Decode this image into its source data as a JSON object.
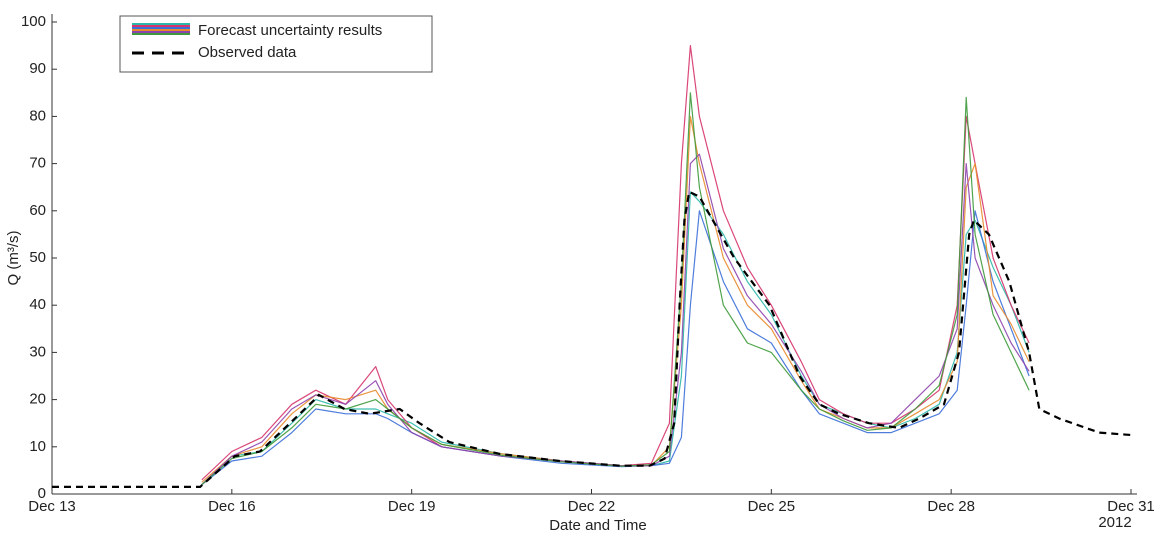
{
  "chart_data": {
    "type": "line",
    "xlabel": "Date and Time",
    "ylabel": "Q (m³/s)",
    "x_year_label": "2012",
    "xlim": [
      13,
      31
    ],
    "ylim": [
      0,
      100
    ],
    "xticks": [
      {
        "value": 13,
        "label": "Dec 13"
      },
      {
        "value": 16,
        "label": "Dec 16"
      },
      {
        "value": 19,
        "label": "Dec 19"
      },
      {
        "value": 22,
        "label": "Dec 22"
      },
      {
        "value": 25,
        "label": "Dec 25"
      },
      {
        "value": 28,
        "label": "Dec 28"
      },
      {
        "value": 31,
        "label": "Dec 31"
      }
    ],
    "yticks": [
      0,
      10,
      20,
      30,
      40,
      50,
      60,
      70,
      80,
      90,
      100
    ],
    "legend": "upper left",
    "ensemble": {
      "name": "Forecast uncertainty results",
      "colors": [
        "#2ab7a9",
        "#d6336c",
        "#3b6fd8",
        "#e8892b",
        "#8e44ad",
        "#3d9a3a"
      ],
      "x": [
        15.5,
        16,
        16.5,
        17,
        17.4,
        17.9,
        18.4,
        18.6,
        19,
        19.5,
        20.5,
        21.5,
        22.5,
        23,
        23.3,
        23.5,
        23.65,
        23.8,
        24.2,
        24.6,
        25,
        25.5,
        25.8,
        26.2,
        26.6,
        27,
        27.4,
        27.8,
        28.1,
        28.25,
        28.4,
        28.7,
        29,
        29.3
      ],
      "members": [
        [
          2,
          8,
          9,
          15,
          20,
          18,
          18,
          17,
          15,
          11,
          8.5,
          7,
          6,
          6,
          7,
          25,
          64,
          62,
          55,
          45,
          38,
          25,
          19,
          17,
          15,
          14,
          16,
          19,
          30,
          55,
          58,
          48,
          40,
          30
        ],
        [
          3,
          9,
          12,
          19,
          22,
          19,
          27,
          20,
          14,
          10,
          8,
          7,
          6,
          6.5,
          15,
          70,
          95,
          80,
          60,
          48,
          40,
          28,
          20,
          17,
          15,
          15,
          18,
          22,
          40,
          80,
          70,
          50,
          40,
          32
        ],
        [
          2,
          7,
          8,
          13,
          18,
          17,
          17,
          16,
          13,
          10,
          8,
          6.5,
          5.8,
          6,
          6.5,
          12,
          40,
          60,
          45,
          35,
          32,
          22,
          17,
          15,
          13,
          13,
          15,
          17,
          22,
          40,
          60,
          45,
          35,
          25
        ],
        [
          2.5,
          8,
          10,
          17,
          21,
          20,
          22,
          18,
          14,
          10.5,
          8.5,
          7,
          6,
          6,
          10,
          40,
          80,
          70,
          50,
          40,
          35,
          24,
          18,
          16,
          14,
          14,
          17,
          20,
          28,
          65,
          70,
          42,
          36,
          28
        ],
        [
          2,
          8,
          11,
          18,
          21,
          19,
          24,
          19,
          13,
          10,
          8,
          7,
          6,
          6,
          8,
          30,
          70,
          72,
          52,
          42,
          36,
          26,
          19,
          16,
          14,
          15,
          20,
          25,
          35,
          70,
          50,
          40,
          32,
          26
        ],
        [
          2,
          7.5,
          9,
          14,
          19,
          18,
          20,
          18,
          14,
          10.5,
          8.2,
          6.8,
          5.9,
          6.2,
          9,
          45,
          85,
          65,
          40,
          32,
          30,
          22,
          18,
          15.5,
          13.5,
          14,
          18,
          23,
          38,
          84,
          55,
          38,
          30,
          22
        ]
      ]
    },
    "series": [
      {
        "name": "Observed data",
        "color": "#000000",
        "dashed": true,
        "x": [
          13,
          14,
          15,
          15.47,
          16.05,
          16.47,
          16.97,
          17.38,
          17.45,
          17.88,
          18.3,
          18.8,
          19.13,
          19.63,
          20.47,
          21.47,
          22.47,
          22.97,
          23.22,
          23.38,
          23.47,
          23.55,
          23.63,
          23.8,
          24.38,
          24.97,
          25.47,
          25.8,
          26.13,
          26.63,
          27.13,
          27.47,
          27.88,
          28.13,
          28.3,
          28.38,
          28.63,
          28.97,
          29.3,
          29.47,
          29.8,
          30.47,
          31
        ],
        "values": [
          1.5,
          1.5,
          1.5,
          1.5,
          8,
          9,
          15,
          20,
          21,
          18,
          17,
          18,
          15,
          11,
          8.5,
          7,
          6,
          6,
          7.5,
          15,
          40,
          58,
          64,
          63,
          50,
          40,
          25,
          19,
          17,
          15,
          14,
          16,
          19,
          30,
          55,
          58,
          55,
          45,
          30,
          18,
          16,
          13,
          12.5
        ]
      }
    ]
  }
}
